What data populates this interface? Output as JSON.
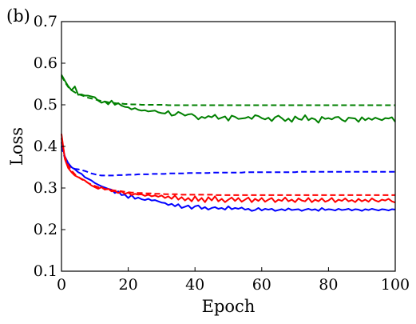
{
  "chart_data": {
    "type": "line",
    "panel_label": "(b)",
    "xlabel": "Epoch",
    "ylabel": "Loss",
    "xlim": [
      0,
      100
    ],
    "ylim": [
      0.1,
      0.7
    ],
    "xticks": [
      0,
      20,
      40,
      60,
      80,
      100
    ],
    "yticks": [
      0.1,
      0.2,
      0.3,
      0.4,
      0.5,
      0.6,
      0.7
    ],
    "xtick_labels": [
      "0",
      "20",
      "40",
      "60",
      "80",
      "100"
    ],
    "ytick_labels": [
      "0.1",
      "0.2",
      "0.3",
      "0.4",
      "0.5",
      "0.6",
      "0.7"
    ],
    "grid": false,
    "x": [
      0,
      1,
      2,
      3,
      4,
      5,
      6,
      7,
      8,
      9,
      10,
      11,
      12,
      13,
      14,
      15,
      16,
      17,
      18,
      19,
      20,
      21,
      22,
      23,
      24,
      25,
      26,
      27,
      28,
      29,
      30,
      31,
      32,
      33,
      34,
      35,
      36,
      37,
      38,
      39,
      40,
      41,
      42,
      43,
      44,
      45,
      46,
      47,
      48,
      49,
      50,
      51,
      52,
      53,
      54,
      55,
      56,
      57,
      58,
      59,
      60,
      61,
      62,
      63,
      64,
      65,
      66,
      67,
      68,
      69,
      70,
      71,
      72,
      73,
      74,
      75,
      76,
      77,
      78,
      79,
      80,
      81,
      82,
      83,
      84,
      85,
      86,
      87,
      88,
      89,
      90,
      91,
      92,
      93,
      94,
      95,
      96,
      97,
      98,
      99,
      100
    ],
    "series": [
      {
        "color": "#008000",
        "style": "dashed",
        "values": [
          0.57,
          0.555,
          0.543,
          0.535,
          0.53,
          0.526,
          0.523,
          0.52,
          0.517,
          0.515,
          0.513,
          0.511,
          0.509,
          0.508,
          0.506,
          0.505,
          0.504,
          0.503,
          0.503,
          0.502,
          0.502,
          0.501,
          0.501,
          0.501,
          0.5,
          0.5,
          0.5,
          0.5,
          0.5,
          0.5,
          0.5,
          0.5,
          0.499,
          0.499,
          0.499,
          0.499,
          0.499,
          0.499,
          0.499,
          0.499,
          0.499,
          0.499,
          0.499,
          0.499,
          0.499,
          0.499,
          0.499,
          0.499,
          0.499,
          0.499,
          0.499,
          0.499,
          0.499,
          0.499,
          0.499,
          0.499,
          0.499,
          0.499,
          0.499,
          0.499,
          0.499,
          0.499,
          0.499,
          0.499,
          0.499,
          0.499,
          0.499,
          0.499,
          0.499,
          0.499,
          0.499,
          0.499,
          0.499,
          0.499,
          0.499,
          0.499,
          0.499,
          0.499,
          0.499,
          0.499,
          0.499,
          0.499,
          0.499,
          0.499,
          0.499,
          0.499,
          0.499,
          0.499,
          0.499,
          0.499,
          0.499,
          0.499,
          0.499,
          0.499,
          0.499,
          0.499,
          0.499,
          0.499,
          0.499,
          0.499,
          0.499
        ]
      },
      {
        "color": "#008000",
        "style": "solid",
        "values": [
          0.572,
          0.558,
          0.545,
          0.535,
          0.544,
          0.524,
          0.525,
          0.522,
          0.522,
          0.52,
          0.518,
          0.51,
          0.505,
          0.508,
          0.501,
          0.51,
          0.5,
          0.504,
          0.498,
          0.495,
          0.494,
          0.489,
          0.492,
          0.488,
          0.486,
          0.487,
          0.484,
          0.485,
          0.486,
          0.482,
          0.48,
          0.479,
          0.485,
          0.474,
          0.476,
          0.483,
          0.479,
          0.474,
          0.477,
          0.478,
          0.473,
          0.465,
          0.471,
          0.468,
          0.473,
          0.47,
          0.476,
          0.466,
          0.469,
          0.472,
          0.462,
          0.474,
          0.471,
          0.466,
          0.467,
          0.468,
          0.471,
          0.466,
          0.475,
          0.473,
          0.468,
          0.465,
          0.469,
          0.461,
          0.47,
          0.474,
          0.468,
          0.461,
          0.467,
          0.459,
          0.472,
          0.466,
          0.464,
          0.475,
          0.463,
          0.468,
          0.465,
          0.457,
          0.471,
          0.466,
          0.468,
          0.465,
          0.47,
          0.471,
          0.464,
          0.46,
          0.469,
          0.468,
          0.467,
          0.459,
          0.47,
          0.463,
          0.468,
          0.464,
          0.469,
          0.466,
          0.463,
          0.468,
          0.467,
          0.47,
          0.459
        ]
      },
      {
        "color": "#0000ff",
        "style": "dashed",
        "values": [
          0.4,
          0.372,
          0.358,
          0.35,
          0.346,
          0.345,
          0.343,
          0.341,
          0.338,
          0.335,
          0.333,
          0.331,
          0.33,
          0.33,
          0.33,
          0.33,
          0.33,
          0.331,
          0.331,
          0.331,
          0.332,
          0.332,
          0.332,
          0.333,
          0.333,
          0.333,
          0.333,
          0.334,
          0.334,
          0.334,
          0.334,
          0.334,
          0.335,
          0.335,
          0.335,
          0.335,
          0.335,
          0.335,
          0.336,
          0.336,
          0.336,
          0.336,
          0.336,
          0.336,
          0.336,
          0.337,
          0.337,
          0.337,
          0.337,
          0.337,
          0.337,
          0.337,
          0.337,
          0.337,
          0.337,
          0.338,
          0.338,
          0.338,
          0.338,
          0.338,
          0.338,
          0.338,
          0.338,
          0.338,
          0.338,
          0.338,
          0.338,
          0.338,
          0.338,
          0.338,
          0.338,
          0.339,
          0.339,
          0.339,
          0.339,
          0.339,
          0.339,
          0.339,
          0.339,
          0.339,
          0.339,
          0.339,
          0.339,
          0.339,
          0.339,
          0.339,
          0.339,
          0.339,
          0.339,
          0.339,
          0.339,
          0.339,
          0.339,
          0.339,
          0.339,
          0.339,
          0.339,
          0.339,
          0.339,
          0.339,
          0.339
        ]
      },
      {
        "color": "#0000ff",
        "style": "solid",
        "values": [
          0.41,
          0.376,
          0.36,
          0.35,
          0.345,
          0.338,
          0.334,
          0.326,
          0.322,
          0.318,
          0.312,
          0.308,
          0.304,
          0.301,
          0.298,
          0.296,
          0.288,
          0.292,
          0.283,
          0.284,
          0.276,
          0.283,
          0.274,
          0.277,
          0.273,
          0.271,
          0.274,
          0.27,
          0.271,
          0.268,
          0.265,
          0.264,
          0.259,
          0.262,
          0.256,
          0.261,
          0.252,
          0.255,
          0.258,
          0.25,
          0.256,
          0.258,
          0.25,
          0.254,
          0.248,
          0.252,
          0.254,
          0.25,
          0.252,
          0.248,
          0.256,
          0.249,
          0.252,
          0.25,
          0.253,
          0.248,
          0.25,
          0.245,
          0.247,
          0.252,
          0.246,
          0.25,
          0.248,
          0.25,
          0.245,
          0.247,
          0.249,
          0.246,
          0.251,
          0.247,
          0.248,
          0.249,
          0.245,
          0.248,
          0.25,
          0.247,
          0.249,
          0.245,
          0.252,
          0.247,
          0.249,
          0.248,
          0.246,
          0.25,
          0.247,
          0.248,
          0.25,
          0.246,
          0.249,
          0.248,
          0.245,
          0.249,
          0.247,
          0.25,
          0.248,
          0.246,
          0.249,
          0.248,
          0.246,
          0.249,
          0.248
        ]
      },
      {
        "color": "#ff0000",
        "style": "dashed",
        "values": [
          0.42,
          0.375,
          0.355,
          0.342,
          0.333,
          0.327,
          0.321,
          0.317,
          0.312,
          0.308,
          0.305,
          0.302,
          0.3,
          0.298,
          0.296,
          0.295,
          0.294,
          0.293,
          0.292,
          0.291,
          0.29,
          0.289,
          0.289,
          0.288,
          0.288,
          0.287,
          0.287,
          0.287,
          0.286,
          0.286,
          0.286,
          0.285,
          0.285,
          0.285,
          0.285,
          0.285,
          0.284,
          0.284,
          0.284,
          0.284,
          0.284,
          0.284,
          0.284,
          0.284,
          0.284,
          0.284,
          0.283,
          0.283,
          0.283,
          0.283,
          0.283,
          0.283,
          0.283,
          0.283,
          0.283,
          0.283,
          0.283,
          0.283,
          0.283,
          0.283,
          0.283,
          0.283,
          0.283,
          0.283,
          0.283,
          0.283,
          0.283,
          0.283,
          0.283,
          0.283,
          0.283,
          0.283,
          0.283,
          0.283,
          0.283,
          0.283,
          0.283,
          0.283,
          0.283,
          0.283,
          0.283,
          0.283,
          0.283,
          0.283,
          0.283,
          0.283,
          0.283,
          0.283,
          0.283,
          0.283,
          0.283,
          0.283,
          0.283,
          0.283,
          0.283,
          0.283,
          0.283,
          0.283,
          0.283,
          0.283,
          0.283
        ]
      },
      {
        "color": "#ff0000",
        "style": "solid",
        "values": [
          0.43,
          0.37,
          0.348,
          0.338,
          0.33,
          0.326,
          0.322,
          0.318,
          0.312,
          0.306,
          0.302,
          0.298,
          0.302,
          0.296,
          0.298,
          0.292,
          0.293,
          0.288,
          0.292,
          0.286,
          0.289,
          0.283,
          0.286,
          0.284,
          0.285,
          0.281,
          0.284,
          0.28,
          0.282,
          0.279,
          0.282,
          0.276,
          0.28,
          0.274,
          0.282,
          0.272,
          0.278,
          0.27,
          0.276,
          0.268,
          0.28,
          0.269,
          0.276,
          0.266,
          0.278,
          0.27,
          0.28,
          0.268,
          0.274,
          0.266,
          0.272,
          0.277,
          0.269,
          0.276,
          0.267,
          0.272,
          0.277,
          0.266,
          0.274,
          0.269,
          0.276,
          0.267,
          0.272,
          0.276,
          0.266,
          0.272,
          0.269,
          0.277,
          0.268,
          0.272,
          0.266,
          0.275,
          0.27,
          0.268,
          0.276,
          0.266,
          0.272,
          0.268,
          0.275,
          0.267,
          0.27,
          0.276,
          0.266,
          0.272,
          0.269,
          0.275,
          0.268,
          0.271,
          0.266,
          0.274,
          0.268,
          0.272,
          0.267,
          0.275,
          0.27,
          0.267,
          0.272,
          0.27,
          0.274,
          0.268,
          0.265
        ]
      }
    ]
  }
}
